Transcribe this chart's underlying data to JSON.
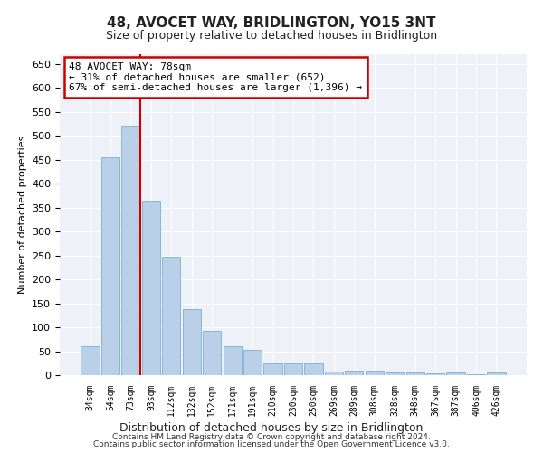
{
  "title": "48, AVOCET WAY, BRIDLINGTON, YO15 3NT",
  "subtitle": "Size of property relative to detached houses in Bridlington",
  "xlabel": "Distribution of detached houses by size in Bridlington",
  "ylabel": "Number of detached properties",
  "categories": [
    "34sqm",
    "54sqm",
    "73sqm",
    "93sqm",
    "112sqm",
    "132sqm",
    "152sqm",
    "171sqm",
    "191sqm",
    "210sqm",
    "230sqm",
    "250sqm",
    "269sqm",
    "289sqm",
    "308sqm",
    "328sqm",
    "348sqm",
    "367sqm",
    "387sqm",
    "406sqm",
    "426sqm"
  ],
  "values": [
    60,
    455,
    520,
    365,
    248,
    138,
    92,
    60,
    53,
    25,
    25,
    25,
    8,
    10,
    10,
    5,
    5,
    3,
    5,
    2,
    5
  ],
  "bar_color": "#bad0e8",
  "bar_edge_color": "#7aafd4",
  "vline_index": 2,
  "vline_color": "#cc0000",
  "annotation_text": "48 AVOCET WAY: 78sqm\n← 31% of detached houses are smaller (652)\n67% of semi-detached houses are larger (1,396) →",
  "annotation_box_color": "#ffffff",
  "annotation_box_edge": "#cc0000",
  "ylim": [
    0,
    670
  ],
  "yticks": [
    0,
    50,
    100,
    150,
    200,
    250,
    300,
    350,
    400,
    450,
    500,
    550,
    600,
    650
  ],
  "background_color": "#eef2f8",
  "grid_color": "#ffffff",
  "footer_line1": "Contains HM Land Registry data © Crown copyright and database right 2024.",
  "footer_line2": "Contains public sector information licensed under the Open Government Licence v3.0."
}
